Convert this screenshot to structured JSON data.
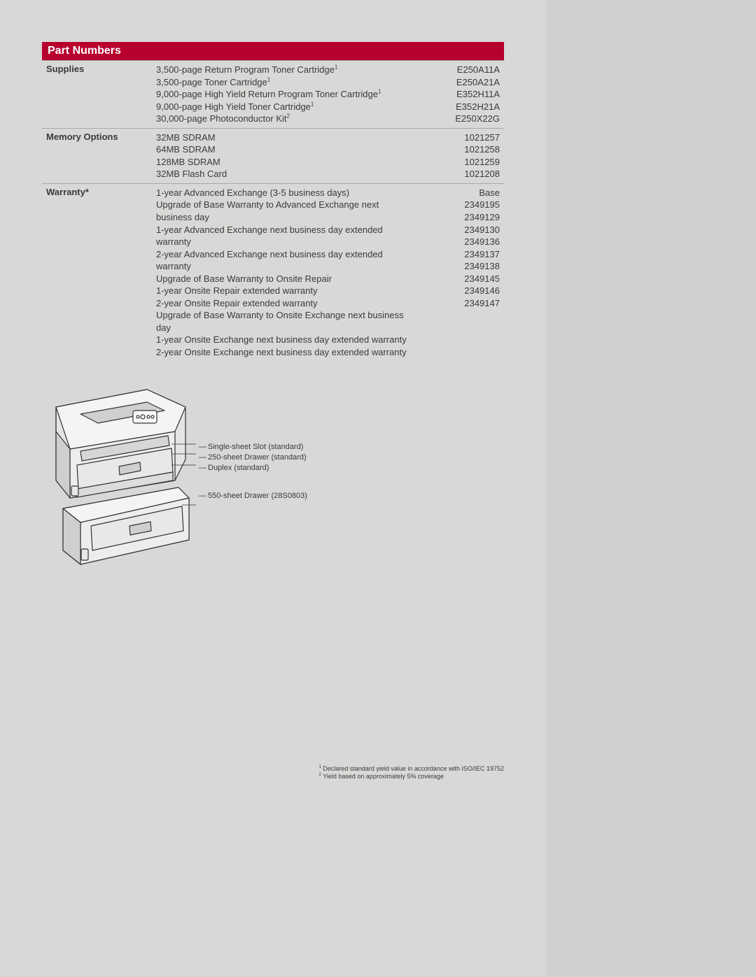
{
  "header": {
    "title": "Part Numbers",
    "bg": "#b7002e",
    "fg": "#ffffff"
  },
  "sections": [
    {
      "category": "Supplies",
      "rows": [
        {
          "desc": "3,500-page Return Program Toner Cartridge",
          "sup": "1",
          "pn": "E250A11A"
        },
        {
          "desc": "3,500-page Toner Cartridge",
          "sup": "1",
          "pn": "E250A21A"
        },
        {
          "desc": "9,000-page High Yield Return Program Toner Cartridge",
          "sup": "1",
          "pn": "E352H11A"
        },
        {
          "desc": "9,000-page High Yield Toner Cartridge",
          "sup": "1",
          "pn": "E352H21A"
        },
        {
          "desc": "30,000-page Photoconductor Kit",
          "sup": "2",
          "pn": "E250X22G"
        }
      ]
    },
    {
      "category": "Memory Options",
      "rows": [
        {
          "desc": "32MB SDRAM",
          "pn": "1021257"
        },
        {
          "desc": "64MB SDRAM",
          "pn": "1021258"
        },
        {
          "desc": "128MB SDRAM",
          "pn": "1021259"
        },
        {
          "desc": "32MB Flash Card",
          "pn": "1021208"
        }
      ]
    },
    {
      "category": "Warranty*",
      "rows": [
        {
          "desc": "1-year Advanced Exchange (3-5 business days)",
          "pn": "Base"
        },
        {
          "desc": "Upgrade of Base Warranty to Advanced Exchange next business day",
          "pn": "2349195"
        },
        {
          "desc": "1-year Advanced Exchange next business day extended warranty",
          "pn": "2349129"
        },
        {
          "desc": "2-year Advanced Exchange next business day extended warranty",
          "pn": "2349130"
        },
        {
          "desc": "Upgrade of Base Warranty to Onsite Repair",
          "pn": "2349136"
        },
        {
          "desc": "1-year Onsite Repair extended warranty",
          "pn": "2349137"
        },
        {
          "desc": "2-year Onsite Repair extended warranty",
          "pn": "2349138"
        },
        {
          "desc": "Upgrade of Base Warranty to Onsite Exchange next business day",
          "pn": "2349145"
        },
        {
          "desc": "1-year Onsite Exchange next business day extended warranty",
          "pn": "2349146"
        },
        {
          "desc": "2-year Onsite Exchange next business day extended warranty",
          "pn": "2349147"
        }
      ]
    }
  ],
  "callouts": {
    "upper": [
      "Single-sheet Slot (standard)",
      "250-sheet Drawer (standard)",
      "Duplex (standard)"
    ],
    "lower": [
      "550-sheet Drawer (28S0803)"
    ]
  },
  "footnotes": [
    {
      "n": "1",
      "text": "Declared standard yield value in accordance with ISO/IEC 19752"
    },
    {
      "n": "2",
      "text": "Yield based on approximately 5% coverage"
    }
  ],
  "colors": {
    "page_outer": "#d0d0ce",
    "page_inner": "#d8d8d6",
    "text": "#3a3a3a",
    "rule": "#a8a8a6",
    "printer_fill": "#e4e4e2",
    "printer_stroke": "#333333"
  }
}
